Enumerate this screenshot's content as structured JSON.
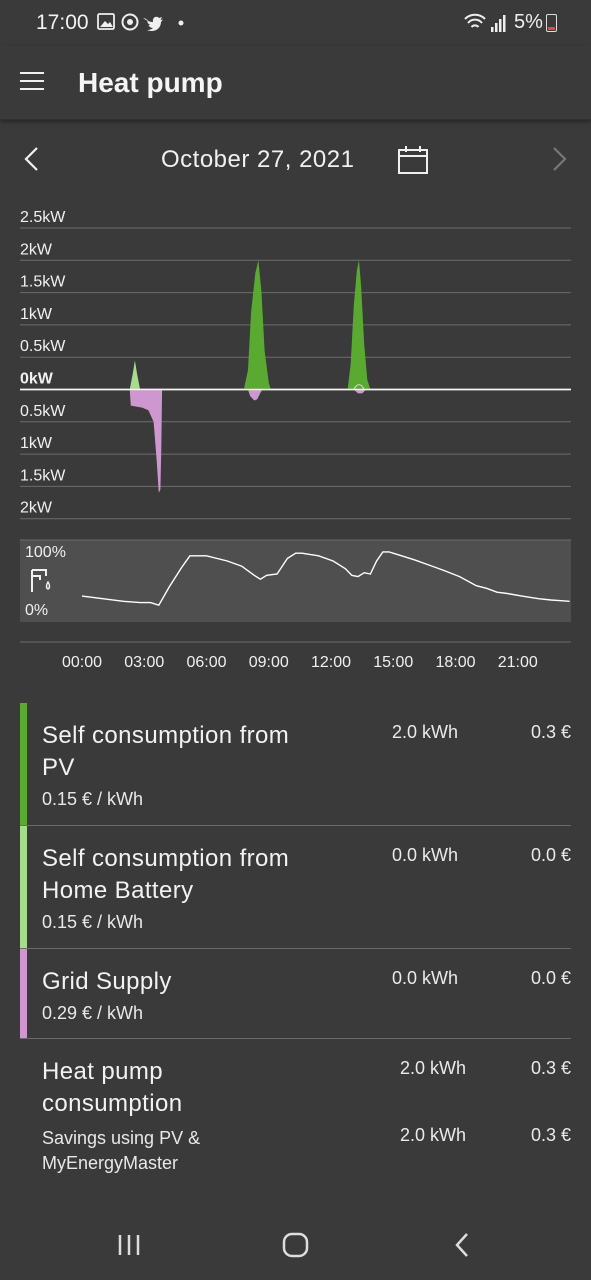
{
  "status_bar": {
    "time": "17:00",
    "battery": "5%",
    "icons": [
      "gallery-icon",
      "sync-icon",
      "twitter-icon",
      "dot-icon",
      "wifi-icon",
      "signal-icon",
      "battery-icon"
    ]
  },
  "app_bar": {
    "title": "Heat pump",
    "menu_icon": "hamburger-menu-icon"
  },
  "date_nav": {
    "date": "October 27, 2021",
    "prev_icon": "chevron-left-icon",
    "next_icon": "chevron-right-icon",
    "calendar_icon": "calendar-icon"
  },
  "chart_data": [
    {
      "type": "area",
      "y_tick_labels": [
        "2.5kW",
        "2kW",
        "1.5kW",
        "1kW",
        "0.5kW",
        "0kW",
        "0.5kW",
        "1kW",
        "1.5kW",
        "2kW"
      ],
      "y_ticks": [
        2.5,
        2,
        1.5,
        1,
        0.5,
        0,
        -0.5,
        -1,
        -1.5,
        -2
      ],
      "ylim": [
        -2,
        2.5
      ],
      "x_unit": "hours",
      "series": [
        {
          "color": "#5aaa32",
          "points": [
            [
              7.8,
              0
            ],
            [
              8.0,
              0.3
            ],
            [
              8.15,
              1.2
            ],
            [
              8.35,
              1.8
            ],
            [
              8.5,
              2.0
            ],
            [
              8.65,
              1.5
            ],
            [
              8.8,
              0.6
            ],
            [
              9.0,
              0.1
            ],
            [
              9.1,
              0
            ]
          ]
        },
        {
          "color": "#5aaa32",
          "points": [
            [
              12.8,
              0
            ],
            [
              12.95,
              0.4
            ],
            [
              13.1,
              1.3
            ],
            [
              13.25,
              1.85
            ],
            [
              13.35,
              2.0
            ],
            [
              13.45,
              1.6
            ],
            [
              13.6,
              0.7
            ],
            [
              13.75,
              0.15
            ],
            [
              13.9,
              0
            ]
          ]
        },
        {
          "color": "#a6dc8a",
          "points": [
            [
              2.3,
              0
            ],
            [
              2.45,
              0.25
            ],
            [
              2.55,
              0.45
            ],
            [
              2.65,
              0.25
            ],
            [
              2.8,
              0
            ]
          ]
        },
        {
          "color": "#cf97cf",
          "points": [
            [
              2.3,
              0
            ],
            [
              2.35,
              -0.25
            ],
            [
              2.9,
              -0.28
            ],
            [
              3.2,
              -0.32
            ],
            [
              3.45,
              -0.5
            ],
            [
              3.6,
              -1.1
            ],
            [
              3.7,
              -1.6
            ],
            [
              3.78,
              -1.55
            ],
            [
              3.82,
              -0.9
            ],
            [
              3.86,
              0
            ]
          ]
        },
        {
          "color": "#cf97cf",
          "points": [
            [
              8.0,
              0
            ],
            [
              8.1,
              -0.1
            ],
            [
              8.3,
              -0.17
            ],
            [
              8.45,
              -0.15
            ],
            [
              8.6,
              -0.05
            ],
            [
              8.7,
              0
            ]
          ]
        },
        {
          "color": "#cf97cf",
          "points": [
            [
              13.1,
              0
            ],
            [
              13.3,
              -0.06
            ],
            [
              13.5,
              -0.06
            ],
            [
              13.7,
              0
            ]
          ]
        }
      ]
    },
    {
      "type": "line",
      "y_tick_labels": [
        "100%",
        "0%"
      ],
      "ylim": [
        0,
        100
      ],
      "icon": "water-tap-icon",
      "x_tick_labels": [
        "00:00",
        "03:00",
        "06:00",
        "09:00",
        "12:00",
        "15:00",
        "18:00",
        "21:00"
      ],
      "x_ticks": [
        0,
        3,
        6,
        9,
        12,
        15,
        18,
        21
      ],
      "xlim": [
        -1,
        23.5
      ],
      "series": [
        {
          "color": "#ffffff",
          "x": [
            0,
            1,
            2,
            2.8,
            3.3,
            3.7,
            4.2,
            4.8,
            5.2,
            6.0,
            7.0,
            7.7,
            8.3,
            8.6,
            8.9,
            9.4,
            9.9,
            10.3,
            10.6,
            11.4,
            12.1,
            12.7,
            13.0,
            13.3,
            13.6,
            13.9,
            14.2,
            14.5,
            14.8,
            15.4,
            16.0,
            16.7,
            17.4,
            18.2,
            19.0,
            19.5,
            20.0,
            20.5,
            21.2,
            22.0,
            22.6,
            23.0,
            23.5
          ],
          "y": [
            26,
            22,
            18,
            16,
            16,
            12,
            40,
            70,
            88,
            88,
            80,
            72,
            58,
            52,
            58,
            60,
            84,
            92,
            92,
            88,
            80,
            68,
            58,
            56,
            62,
            60,
            80,
            94,
            94,
            88,
            82,
            74,
            66,
            56,
            42,
            38,
            32,
            30,
            26,
            22,
            20,
            19,
            18
          ]
        }
      ]
    }
  ],
  "summary": [
    {
      "title": [
        "Self consumption from",
        "PV"
      ],
      "price": "0.15 € / kWh",
      "kwh": "2.0 kWh",
      "eur": "0.3 €",
      "color": "#5aaa32"
    },
    {
      "title": [
        "Self consumption from",
        "Home Battery"
      ],
      "price": "0.15 € / kWh",
      "kwh": "0.0 kWh",
      "eur": "0.0 €",
      "color": "#a6dc8a"
    },
    {
      "title": [
        "Grid Supply"
      ],
      "price": "0.29 € / kWh",
      "kwh": "0.0 kWh",
      "eur": "0.0 €",
      "color": "#cf97cf"
    }
  ],
  "consumption": {
    "title": [
      "Heat pump",
      "consumption"
    ],
    "kwh": "2.0 kWh",
    "eur": "0.3 €",
    "savings_label": [
      "Savings using PV &",
      "MyEnergyMaster"
    ],
    "savings_kwh": "2.0 kWh",
    "savings_eur": "0.3 €"
  },
  "nav_bar": {
    "icons": [
      "recent-apps-icon",
      "home-icon",
      "back-icon"
    ]
  }
}
